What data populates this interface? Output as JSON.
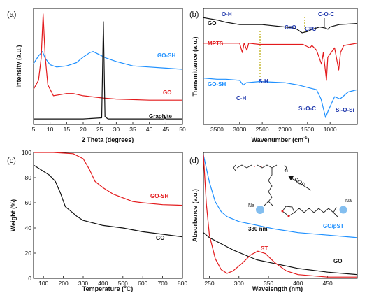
{
  "chart_data": [
    {
      "panel": "(a)",
      "type": "line",
      "xlabel": "2 Theta (degrees)",
      "ylabel": "Intensity (a.u.)",
      "xlim": [
        5,
        50
      ],
      "xticks": [
        "5",
        "10",
        "15",
        "20",
        "25",
        "30",
        "35",
        "40",
        "45",
        "50"
      ],
      "series": [
        {
          "name": "GO-SH",
          "color": "#1e90ff",
          "points": [
            [
              5,
              0.55
            ],
            [
              6.5,
              0.62
            ],
            [
              7.7,
              0.66
            ],
            [
              8.5,
              0.6
            ],
            [
              10,
              0.54
            ],
            [
              12,
              0.52
            ],
            [
              15,
              0.53
            ],
            [
              18,
              0.56
            ],
            [
              20,
              0.61
            ],
            [
              22,
              0.65
            ],
            [
              23,
              0.66
            ],
            [
              25,
              0.63
            ],
            [
              27,
              0.6
            ],
            [
              30,
              0.57
            ],
            [
              35,
              0.53
            ],
            [
              40,
              0.52
            ],
            [
              45,
              0.51
            ],
            [
              50,
              0.5
            ]
          ]
        },
        {
          "name": "GO",
          "color": "#e31a1c",
          "points": [
            [
              5,
              0.32
            ],
            [
              6.5,
              0.4
            ],
            [
              7.3,
              0.6
            ],
            [
              7.9,
              1.0
            ],
            [
              8.5,
              0.62
            ],
            [
              9.3,
              0.36
            ],
            [
              11,
              0.26
            ],
            [
              13,
              0.27
            ],
            [
              15,
              0.28
            ],
            [
              17,
              0.28
            ],
            [
              20,
              0.26
            ],
            [
              23,
              0.25
            ],
            [
              26,
              0.24
            ],
            [
              30,
              0.23
            ],
            [
              40,
              0.22
            ],
            [
              50,
              0.22
            ]
          ]
        },
        {
          "name": "Graphite",
          "color": "#111111",
          "points": [
            [
              5,
              0.05
            ],
            [
              20,
              0.05
            ],
            [
              25.6,
              0.06
            ],
            [
              26.1,
              0.93
            ],
            [
              26.6,
              0.07
            ],
            [
              27.5,
              0.05
            ],
            [
              44.5,
              0.05
            ],
            [
              44.7,
              0.07
            ],
            [
              44.9,
              0.05
            ],
            [
              50,
              0.05
            ]
          ]
        }
      ]
    },
    {
      "panel": "(b)",
      "type": "line",
      "xlabel": "Wavenumber (cm",
      "xlabel_sup": "-1",
      "xlabel_end": ")",
      "ylabel": "Transmittance (a.u.)",
      "xlim": [
        3800,
        400
      ],
      "xticks": [
        "3500",
        "3000",
        "2500",
        "2000",
        "1500",
        "1000"
      ],
      "annotations": [
        "O-H",
        "C=O",
        "C-O-C",
        "C=C",
        "C-H",
        "S-H",
        "Si-O-C",
        "Si-O-Si"
      ],
      "series": [
        {
          "name": "GO",
          "color": "#111111",
          "points": [
            [
              3800,
              0.92
            ],
            [
              3500,
              0.9
            ],
            [
              3300,
              0.88
            ],
            [
              3000,
              0.86
            ],
            [
              2500,
              0.86
            ],
            [
              2000,
              0.84
            ],
            [
              1800,
              0.83
            ],
            [
              1730,
              0.82
            ],
            [
              1620,
              0.79
            ],
            [
              1500,
              0.8
            ],
            [
              1400,
              0.82
            ],
            [
              1225,
              0.84
            ],
            [
              1100,
              0.83
            ],
            [
              1050,
              0.82
            ],
            [
              1000,
              0.84
            ],
            [
              800,
              0.86
            ],
            [
              400,
              0.87
            ]
          ]
        },
        {
          "name": "MPTS",
          "color": "#e31a1c",
          "points": [
            [
              3800,
              0.7
            ],
            [
              3000,
              0.7
            ],
            [
              2940,
              0.62
            ],
            [
              2900,
              0.7
            ],
            [
              2840,
              0.64
            ],
            [
              2800,
              0.7
            ],
            [
              2560,
              0.69
            ],
            [
              1600,
              0.69
            ],
            [
              1450,
              0.66
            ],
            [
              1400,
              0.68
            ],
            [
              1300,
              0.64
            ],
            [
              1190,
              0.52
            ],
            [
              1150,
              0.62
            ],
            [
              1080,
              0.38
            ],
            [
              1050,
              0.58
            ],
            [
              900,
              0.66
            ],
            [
              810,
              0.47
            ],
            [
              770,
              0.62
            ],
            [
              700,
              0.68
            ],
            [
              400,
              0.7
            ]
          ]
        },
        {
          "name": "GO-SH",
          "color": "#1e90ff",
          "points": [
            [
              3800,
              0.4
            ],
            [
              3500,
              0.39
            ],
            [
              3300,
              0.39
            ],
            [
              3000,
              0.38
            ],
            [
              2920,
              0.34
            ],
            [
              2850,
              0.36
            ],
            [
              2560,
              0.37
            ],
            [
              2000,
              0.36
            ],
            [
              1700,
              0.34
            ],
            [
              1500,
              0.32
            ],
            [
              1300,
              0.3
            ],
            [
              1200,
              0.22
            ],
            [
              1100,
              0.06
            ],
            [
              1040,
              0.12
            ],
            [
              900,
              0.24
            ],
            [
              780,
              0.22
            ],
            [
              600,
              0.28
            ],
            [
              400,
              0.3
            ]
          ]
        }
      ]
    },
    {
      "panel": "(c)",
      "type": "line",
      "xlabel": "Temperature (",
      "xlabel_deg": "o",
      "xlabel_end": "C)",
      "ylabel": "Weight (%)",
      "xlim": [
        50,
        800
      ],
      "ylim": [
        0,
        100
      ],
      "xticks": [
        100,
        200,
        300,
        400,
        500,
        600,
        700,
        800
      ],
      "yticks": [
        0,
        20,
        40,
        60,
        80,
        100
      ],
      "series": [
        {
          "name": "GO-SH",
          "color": "#e31a1c",
          "points": [
            [
              50,
              100
            ],
            [
              150,
              100
            ],
            [
              250,
              99
            ],
            [
              300,
              95
            ],
            [
              330,
              87
            ],
            [
              360,
              77
            ],
            [
              400,
              72
            ],
            [
              450,
              67
            ],
            [
              500,
              64
            ],
            [
              550,
              61
            ],
            [
              600,
              60
            ],
            [
              700,
              58.5
            ],
            [
              800,
              58
            ]
          ]
        },
        {
          "name": "GO",
          "color": "#111111",
          "points": [
            [
              50,
              90
            ],
            [
              80,
              87
            ],
            [
              100,
              85
            ],
            [
              130,
              82
            ],
            [
              160,
              77
            ],
            [
              185,
              68
            ],
            [
              210,
              57
            ],
            [
              240,
              53
            ],
            [
              270,
              49
            ],
            [
              300,
              46
            ],
            [
              350,
              44
            ],
            [
              400,
              42
            ],
            [
              500,
              40
            ],
            [
              600,
              37
            ],
            [
              700,
              35
            ],
            [
              800,
              33
            ]
          ]
        }
      ]
    },
    {
      "panel": "(d)",
      "type": "line",
      "xlabel": "Wavelength (nm)",
      "ylabel": "Absorbance (a.u.)",
      "xlim": [
        240,
        500
      ],
      "xticks": [
        250,
        300,
        350,
        400,
        450
      ],
      "annotations": [
        "330 nm",
        "ROP",
        "Na",
        "Na",
        "n"
      ],
      "series": [
        {
          "name": "GO/pST",
          "color": "#1e90ff",
          "points": [
            [
              240,
              1.0
            ],
            [
              250,
              0.78
            ],
            [
              260,
              0.62
            ],
            [
              270,
              0.54
            ],
            [
              280,
              0.5
            ],
            [
              300,
              0.46
            ],
            [
              330,
              0.43
            ],
            [
              360,
              0.4
            ],
            [
              400,
              0.37
            ],
            [
              450,
              0.35
            ],
            [
              500,
              0.33
            ]
          ]
        },
        {
          "name": "GO",
          "color": "#111111",
          "points": [
            [
              240,
              0.37
            ],
            [
              250,
              0.33
            ],
            [
              270,
              0.28
            ],
            [
              290,
              0.23
            ],
            [
              310,
              0.19
            ],
            [
              330,
              0.15
            ],
            [
              360,
              0.12
            ],
            [
              400,
              0.08
            ],
            [
              450,
              0.05
            ],
            [
              500,
              0.03
            ]
          ]
        },
        {
          "name": "ST",
          "color": "#e31a1c",
          "points": [
            [
              240,
              1.0
            ],
            [
              245,
              0.6
            ],
            [
              250,
              0.35
            ],
            [
              260,
              0.16
            ],
            [
              270,
              0.07
            ],
            [
              280,
              0.04
            ],
            [
              290,
              0.06
            ],
            [
              305,
              0.12
            ],
            [
              320,
              0.19
            ],
            [
              332,
              0.22
            ],
            [
              345,
              0.2
            ],
            [
              360,
              0.13
            ],
            [
              380,
              0.06
            ],
            [
              400,
              0.03
            ],
            [
              450,
              0.01
            ],
            [
              500,
              0.01
            ]
          ]
        }
      ]
    }
  ]
}
